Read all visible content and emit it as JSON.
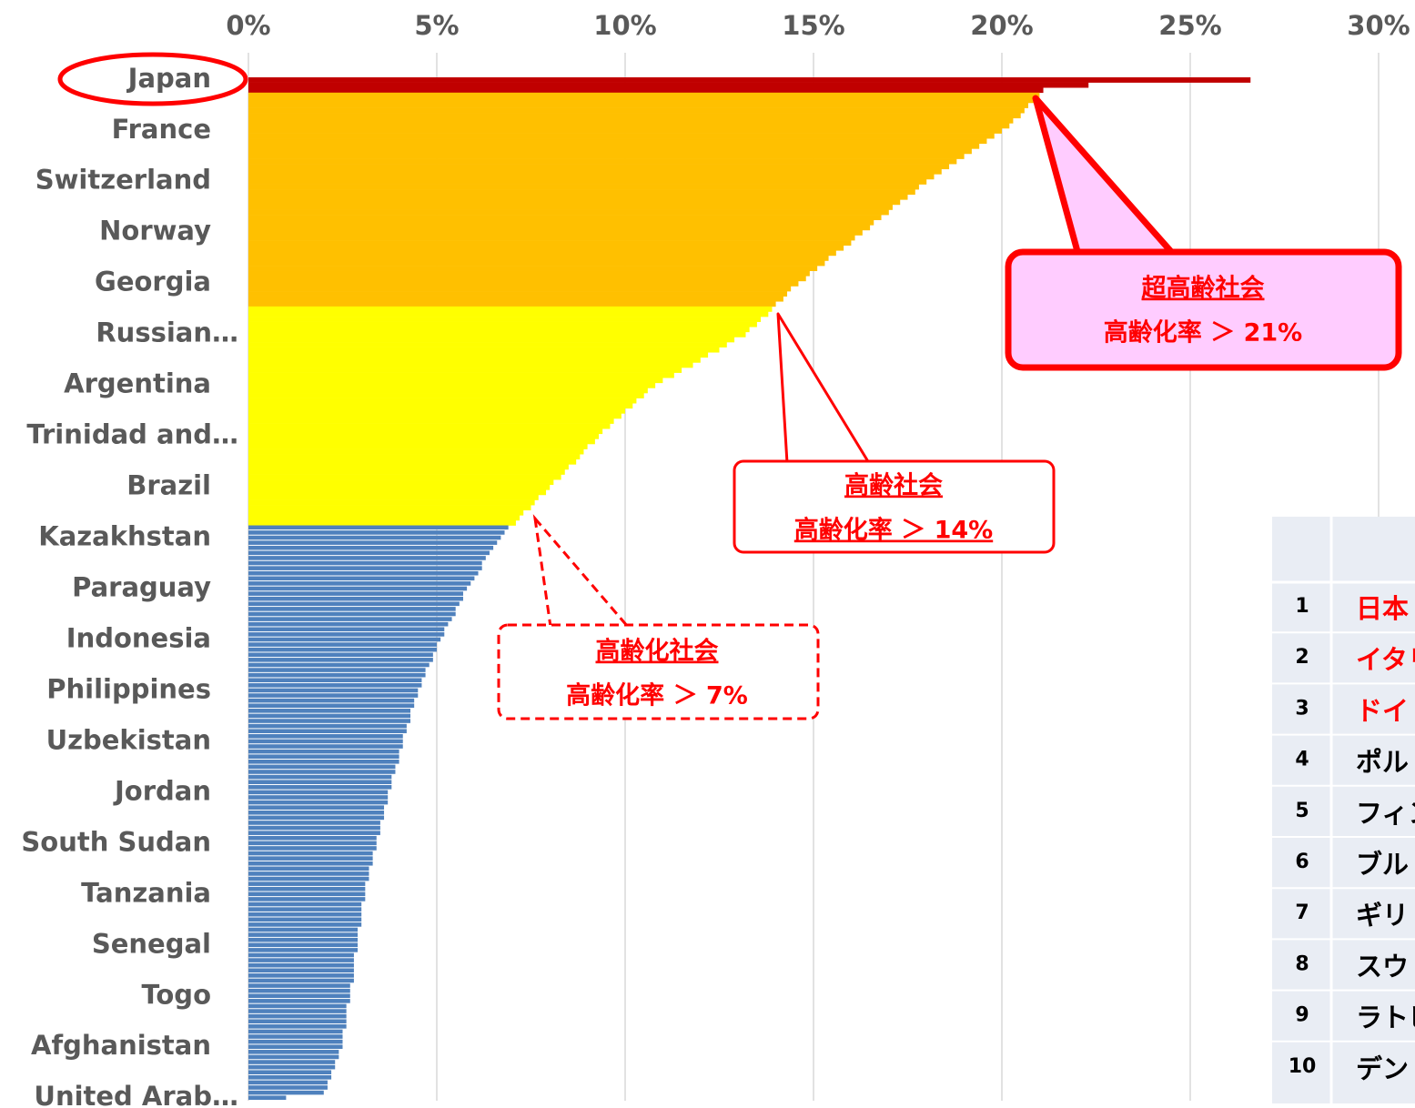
{
  "chart_data": {
    "type": "barh",
    "categories": [
      "Japan",
      null,
      null,
      null,
      null,
      null,
      null,
      null,
      null,
      null,
      "France",
      null,
      null,
      null,
      null,
      null,
      null,
      null,
      null,
      null,
      "Switzerland",
      null,
      null,
      null,
      null,
      null,
      null,
      null,
      null,
      null,
      "Norway",
      null,
      null,
      null,
      null,
      null,
      null,
      null,
      null,
      null,
      "Georgia",
      null,
      null,
      null,
      null,
      null,
      null,
      null,
      null,
      null,
      "Russian…",
      null,
      null,
      null,
      null,
      null,
      null,
      null,
      null,
      null,
      "Argentina",
      null,
      null,
      null,
      null,
      null,
      null,
      null,
      null,
      null,
      "Trinidad and…",
      null,
      null,
      null,
      null,
      null,
      null,
      null,
      null,
      null,
      "Brazil",
      null,
      null,
      null,
      null,
      null,
      null,
      null,
      null,
      null,
      "Kazakhstan",
      null,
      null,
      null,
      null,
      null,
      null,
      null,
      null,
      null,
      "Paraguay",
      null,
      null,
      null,
      null,
      null,
      null,
      null,
      null,
      null,
      "Indonesia",
      null,
      null,
      null,
      null,
      null,
      null,
      null,
      null,
      null,
      "Philippines",
      null,
      null,
      null,
      null,
      null,
      null,
      null,
      null,
      null,
      "Uzbekistan",
      null,
      null,
      null,
      null,
      null,
      null,
      null,
      null,
      null,
      "Jordan",
      null,
      null,
      null,
      null,
      null,
      null,
      null,
      null,
      null,
      "South Sudan",
      null,
      null,
      null,
      null,
      null,
      null,
      null,
      null,
      null,
      "Tanzania",
      null,
      null,
      null,
      null,
      null,
      null,
      null,
      null,
      null,
      "Senegal",
      null,
      null,
      null,
      null,
      null,
      null,
      null,
      null,
      null,
      "Togo",
      null,
      null,
      null,
      null,
      null,
      null,
      null,
      null,
      null,
      "Afghanistan",
      null,
      null,
      null,
      null,
      null,
      null,
      null,
      null,
      null,
      "United Arab…"
    ],
    "values": [
      26.6,
      22.3,
      21.1,
      21.0,
      20.9,
      20.7,
      20.6,
      20.5,
      20.3,
      20.2,
      20.0,
      19.8,
      19.6,
      19.4,
      19.2,
      19.0,
      18.8,
      18.6,
      18.4,
      18.2,
      18.0,
      17.8,
      17.7,
      17.5,
      17.3,
      17.1,
      17.0,
      16.8,
      16.6,
      16.5,
      16.3,
      16.1,
      16.0,
      15.8,
      15.6,
      15.4,
      15.3,
      15.1,
      14.9,
      14.8,
      14.6,
      14.4,
      14.3,
      14.2,
      14.0,
      13.9,
      13.8,
      13.6,
      13.5,
      13.3,
      13.2,
      12.9,
      12.7,
      12.5,
      12.2,
      12.0,
      11.8,
      11.5,
      11.3,
      11.0,
      10.8,
      10.6,
      10.5,
      10.3,
      10.2,
      10.0,
      9.9,
      9.7,
      9.6,
      9.4,
      9.3,
      9.2,
      9.0,
      8.9,
      8.8,
      8.7,
      8.5,
      8.4,
      8.3,
      8.1,
      8.0,
      7.9,
      7.7,
      7.6,
      7.5,
      7.3,
      7.2,
      7.1,
      6.9,
      6.8,
      6.7,
      6.6,
      6.5,
      6.4,
      6.3,
      6.2,
      6.2,
      6.1,
      6.0,
      5.9,
      5.8,
      5.7,
      5.7,
      5.6,
      5.5,
      5.5,
      5.4,
      5.3,
      5.2,
      5.2,
      5.1,
      5.0,
      5.0,
      4.9,
      4.9,
      4.8,
      4.7,
      4.7,
      4.6,
      4.6,
      4.5,
      4.5,
      4.4,
      4.4,
      4.3,
      4.3,
      4.3,
      4.2,
      4.2,
      4.1,
      4.1,
      4.1,
      4.0,
      4.0,
      4.0,
      3.9,
      3.9,
      3.8,
      3.8,
      3.8,
      3.7,
      3.7,
      3.7,
      3.6,
      3.6,
      3.6,
      3.5,
      3.5,
      3.5,
      3.4,
      3.4,
      3.4,
      3.3,
      3.3,
      3.3,
      3.2,
      3.2,
      3.2,
      3.1,
      3.1,
      3.1,
      3.1,
      3.0,
      3.0,
      3.0,
      3.0,
      3.0,
      2.9,
      2.9,
      2.9,
      2.9,
      2.9,
      2.8,
      2.8,
      2.8,
      2.8,
      2.8,
      2.8,
      2.7,
      2.7,
      2.7,
      2.7,
      2.6,
      2.6,
      2.6,
      2.6,
      2.6,
      2.5,
      2.5,
      2.5,
      2.5,
      2.4,
      2.4,
      2.3,
      2.3,
      2.2,
      2.2,
      2.1,
      2.1,
      2.0,
      1.0
    ],
    "color_bands": [
      {
        "min": 14,
        "color": "#ffc000"
      },
      {
        "min": 7,
        "color": "#ffff00"
      },
      {
        "min": 0,
        "color": "#4f81bd"
      }
    ],
    "highlight_count": 3,
    "highlight_color": "#c00000",
    "xlim": [
      0,
      30
    ],
    "xticks": [
      {
        "value": 0,
        "label": "0%"
      },
      {
        "value": 5,
        "label": "5%"
      },
      {
        "value": 10,
        "label": "10%"
      },
      {
        "value": 15,
        "label": "15%"
      },
      {
        "value": 20,
        "label": "20%"
      },
      {
        "value": 25,
        "label": "25%"
      },
      {
        "value": 30,
        "label": "30%"
      }
    ],
    "grid": true,
    "annotations": [
      {
        "title": "超高齢社会",
        "text": "高齢化率 ＞ 21%"
      },
      {
        "title": "高齢社会",
        "text": "高齢化率 ＞ 14%"
      },
      {
        "title": "高齢化社会",
        "text": "高齢化率 ＞ 7%"
      }
    ]
  },
  "table": {
    "rows": [
      [
        1,
        "日本"
      ],
      [
        2,
        "イタリ"
      ],
      [
        3,
        "ドイ"
      ],
      [
        4,
        "ポル"
      ],
      [
        5,
        "フィン"
      ],
      [
        6,
        "ブル"
      ],
      [
        7,
        "ギリ"
      ],
      [
        8,
        "スウ"
      ],
      [
        9,
        "ラトビ"
      ],
      [
        10,
        "デン"
      ]
    ]
  }
}
